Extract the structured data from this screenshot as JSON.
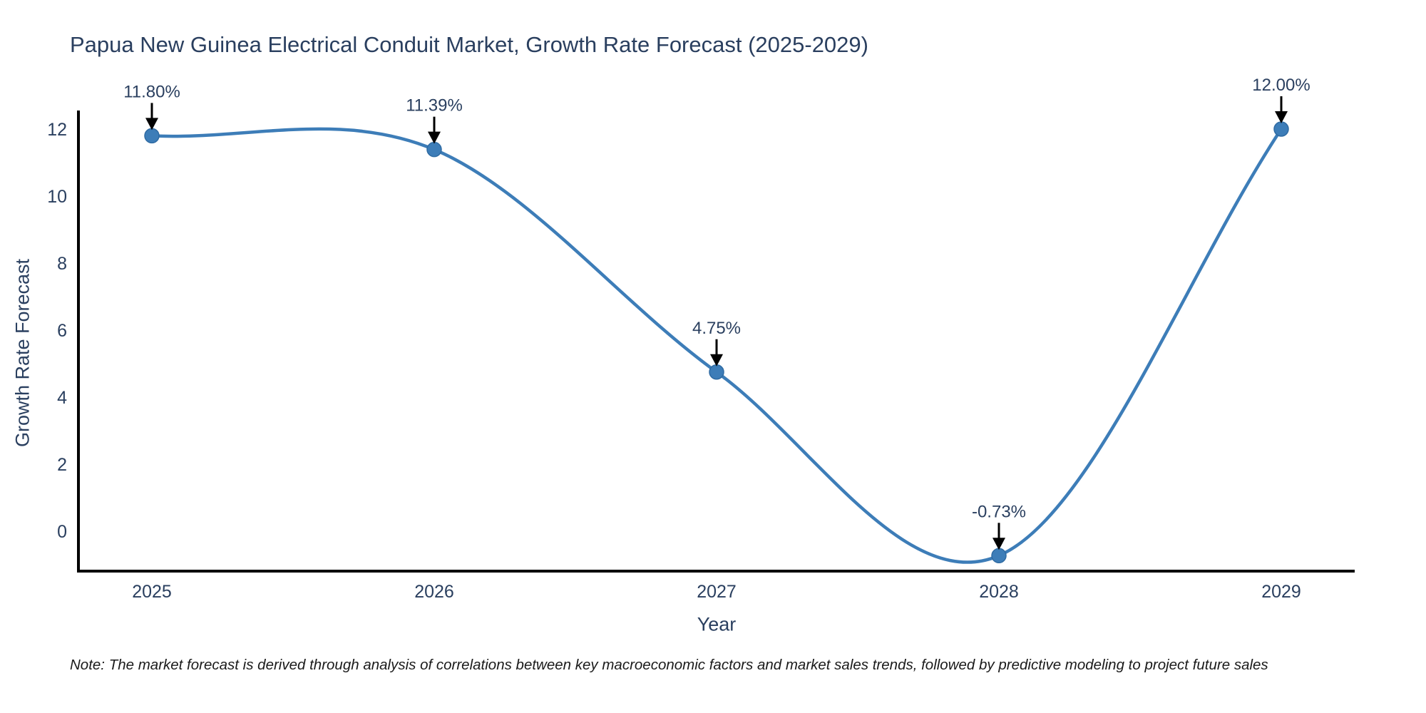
{
  "title": "Papua New Guinea Electrical Conduit Market, Growth Rate Forecast (2025-2029)",
  "note": "Note: The market forecast is derived through analysis of correlations between key macroeconomic factors and market sales trends, followed by predictive modeling to project future sales",
  "chart_data": {
    "type": "line",
    "title": "Papua New Guinea Electrical Conduit Market, Growth Rate Forecast (2025-2029)",
    "xlabel": "Year",
    "ylabel": "Growth Rate Forecast",
    "categories": [
      "2025",
      "2026",
      "2027",
      "2028",
      "2029"
    ],
    "values": [
      11.8,
      11.39,
      4.75,
      -0.73,
      12.0
    ],
    "point_labels": [
      "11.80%",
      "11.39%",
      "4.75%",
      "-0.73%",
      "12.00%"
    ],
    "y_ticks": [
      0,
      2,
      4,
      6,
      8,
      10,
      12
    ],
    "ylim": [
      -1.2,
      12.6
    ],
    "line_shape": "spline",
    "grid": false,
    "legend_position": "none",
    "annotation_arrows": true,
    "colors": {
      "line": "#3d7db8",
      "marker": "#3d7db8",
      "marker_edge": "#2f6ba3",
      "arrow": "#000000",
      "axis_spine": "#000000",
      "text": "#2a3f5f",
      "background": "#ffffff"
    }
  }
}
